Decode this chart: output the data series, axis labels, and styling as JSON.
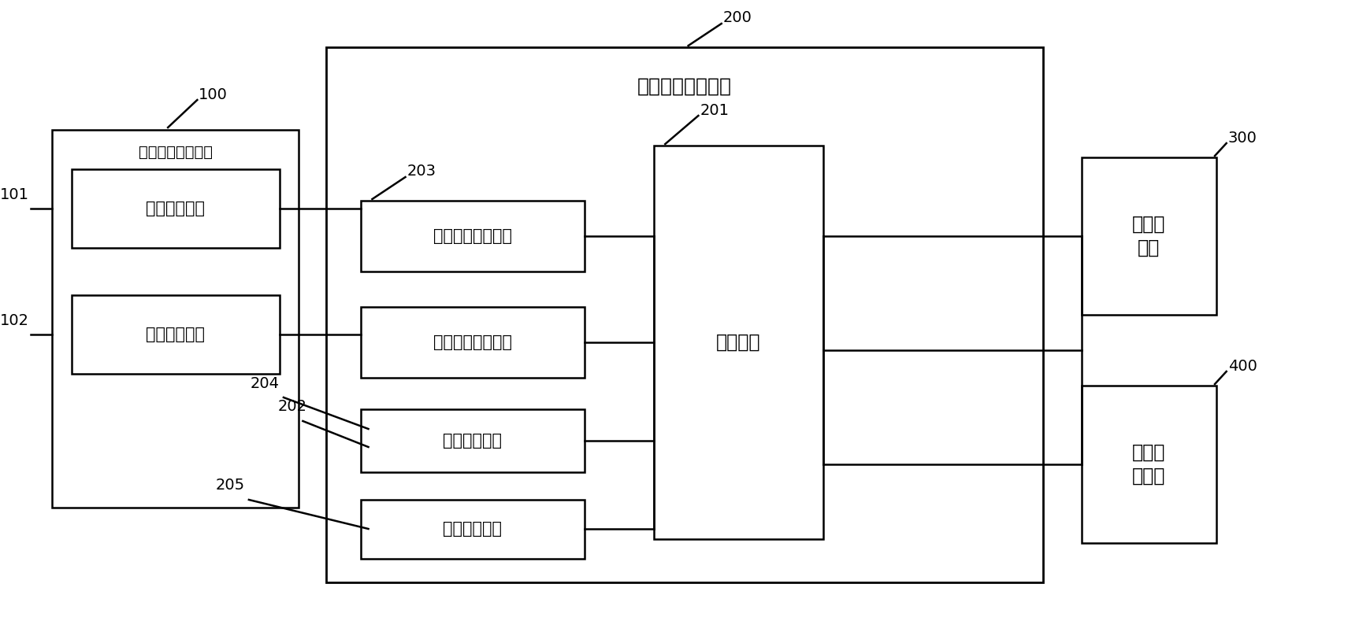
{
  "figsize": [
    17.25,
    7.84
  ],
  "dpi": 100,
  "bg_color": "#ffffff",
  "box_color": "#000000",
  "box_fill": "#ffffff",
  "title_200": "出入口集成控制机",
  "label_100": "双向识别相机模组",
  "label_101": "第一监控相机",
  "label_102": "第二监控相机",
  "label_201": "主控制器",
  "label_drv1": "第一相机驱动模块",
  "label_drv2": "第二相机驱动模块",
  "label_gate": "道闸控制模块",
  "label_veh": "车辆识别模块",
  "label_300": "双向显\n示屏",
  "label_400": "语音播\n报模块",
  "ref_100": "100",
  "ref_101": "101",
  "ref_102": "102",
  "ref_200": "200",
  "ref_201": "201",
  "ref_202": "202",
  "ref_203": "203",
  "ref_204": "204",
  "ref_205": "205",
  "ref_300": "300",
  "ref_400": "400",
  "fs_large": 17,
  "fs_medium": 15,
  "fs_ref": 14,
  "lw_main": 1.8,
  "lw_outer": 2.0
}
